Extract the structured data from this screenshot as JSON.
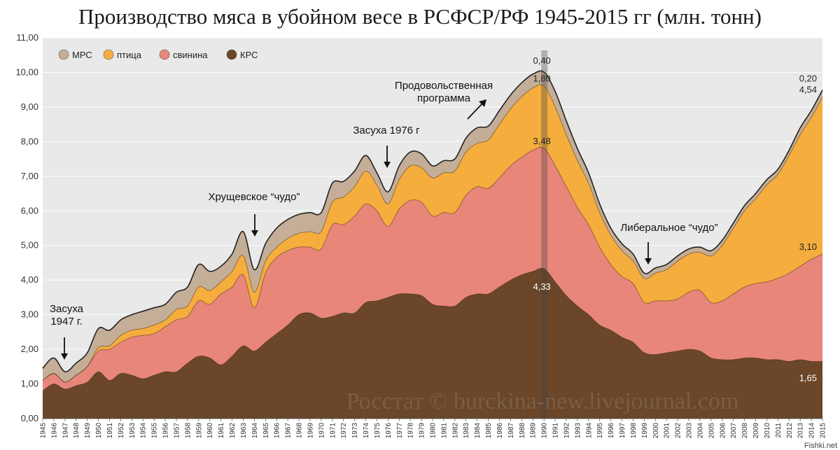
{
  "chart_data": {
    "type": "area",
    "title": "Производство мяса в убойном весе в РСФСР/РФ 1945-2015 гг (млн. тонн)",
    "ylim": [
      0,
      11
    ],
    "y_ticks": [
      "0,00",
      "1,00",
      "2,00",
      "3,00",
      "4,00",
      "5,00",
      "6,00",
      "7,00",
      "8,00",
      "9,00",
      "10,00",
      "11,00"
    ],
    "grid": true,
    "stacked": true,
    "legend_position": "top-left",
    "x": [
      "1945",
      "1946",
      "1947",
      "1948",
      "1949",
      "1950",
      "1951",
      "1952",
      "1953",
      "1954",
      "1955",
      "1956",
      "1957",
      "1958",
      "1959",
      "1960",
      "1961",
      "1962",
      "1963",
      "1964",
      "1965",
      "1966",
      "1967",
      "1968",
      "1969",
      "1970",
      "1971",
      "1972",
      "1973",
      "1974",
      "1975",
      "1976",
      "1977",
      "1978",
      "1979",
      "1980",
      "1981",
      "1982",
      "1983",
      "1984",
      "1985",
      "1986",
      "1987",
      "1988",
      "1989",
      "1990",
      "1991",
      "1992",
      "1993",
      "1994",
      "1995",
      "1996",
      "1997",
      "1998",
      "1999",
      "2000",
      "2001",
      "2002",
      "2003",
      "2004",
      "2005",
      "2006",
      "2007",
      "2008",
      "2009",
      "2010",
      "2011",
      "2012",
      "2013",
      "2014",
      "2015"
    ],
    "series": [
      {
        "name": "КРС",
        "color": "#6b4628",
        "values": [
          0.8,
          1.0,
          0.85,
          0.95,
          1.05,
          1.35,
          1.1,
          1.3,
          1.25,
          1.15,
          1.25,
          1.35,
          1.35,
          1.6,
          1.8,
          1.75,
          1.55,
          1.8,
          2.1,
          1.95,
          2.2,
          2.45,
          2.7,
          3.0,
          3.05,
          2.9,
          2.95,
          3.05,
          3.05,
          3.35,
          3.4,
          3.5,
          3.6,
          3.6,
          3.55,
          3.3,
          3.25,
          3.25,
          3.5,
          3.6,
          3.6,
          3.8,
          4.0,
          4.15,
          4.25,
          4.33,
          3.95,
          3.55,
          3.25,
          3.0,
          2.7,
          2.55,
          2.35,
          2.2,
          1.9,
          1.85,
          1.9,
          1.95,
          2.0,
          1.95,
          1.75,
          1.7,
          1.7,
          1.75,
          1.75,
          1.7,
          1.7,
          1.65,
          1.7,
          1.65,
          1.65
        ]
      },
      {
        "name": "свинина",
        "color": "#e8867a",
        "values": [
          0.3,
          0.3,
          0.2,
          0.3,
          0.45,
          0.6,
          0.9,
          0.9,
          1.1,
          1.25,
          1.2,
          1.3,
          1.5,
          1.35,
          1.6,
          1.55,
          2.05,
          2.0,
          2.05,
          1.25,
          2.0,
          2.2,
          2.15,
          1.95,
          1.9,
          2.0,
          2.65,
          2.55,
          2.8,
          2.85,
          2.6,
          2.05,
          2.45,
          2.7,
          2.7,
          2.55,
          2.7,
          2.7,
          2.95,
          3.1,
          3.05,
          3.15,
          3.3,
          3.4,
          3.5,
          3.48,
          3.35,
          3.15,
          2.85,
          2.6,
          2.25,
          1.9,
          1.75,
          1.7,
          1.45,
          1.55,
          1.5,
          1.5,
          1.65,
          1.75,
          1.6,
          1.7,
          1.9,
          2.05,
          2.15,
          2.25,
          2.35,
          2.55,
          2.7,
          2.95,
          3.1
        ]
      },
      {
        "name": "птица",
        "color": "#f5ad3d",
        "values": [
          0.0,
          0.0,
          0.0,
          0.0,
          0.0,
          0.1,
          0.1,
          0.2,
          0.2,
          0.2,
          0.25,
          0.2,
          0.3,
          0.3,
          0.4,
          0.4,
          0.35,
          0.45,
          0.55,
          0.45,
          0.35,
          0.3,
          0.35,
          0.4,
          0.45,
          0.5,
          0.65,
          0.8,
          0.85,
          0.95,
          0.75,
          0.65,
          0.85,
          1.0,
          1.0,
          1.1,
          1.15,
          1.2,
          1.25,
          1.25,
          1.4,
          1.55,
          1.65,
          1.75,
          1.8,
          1.8,
          1.7,
          1.5,
          1.35,
          1.2,
          1.0,
          0.85,
          0.75,
          0.65,
          0.7,
          0.8,
          0.9,
          1.1,
          1.1,
          1.1,
          1.35,
          1.6,
          1.9,
          2.2,
          2.45,
          2.8,
          3.0,
          3.4,
          3.8,
          4.1,
          4.54
        ]
      },
      {
        "name": "МРС",
        "color": "#c4ae98",
        "values": [
          0.35,
          0.45,
          0.3,
          0.35,
          0.4,
          0.55,
          0.45,
          0.45,
          0.45,
          0.5,
          0.5,
          0.45,
          0.5,
          0.55,
          0.65,
          0.55,
          0.45,
          0.5,
          0.7,
          0.65,
          0.5,
          0.55,
          0.55,
          0.55,
          0.55,
          0.55,
          0.55,
          0.45,
          0.45,
          0.45,
          0.35,
          0.35,
          0.4,
          0.4,
          0.4,
          0.35,
          0.35,
          0.35,
          0.4,
          0.45,
          0.4,
          0.4,
          0.4,
          0.4,
          0.4,
          0.4,
          0.45,
          0.4,
          0.35,
          0.3,
          0.25,
          0.2,
          0.2,
          0.2,
          0.15,
          0.15,
          0.15,
          0.15,
          0.15,
          0.15,
          0.15,
          0.15,
          0.15,
          0.15,
          0.15,
          0.15,
          0.15,
          0.15,
          0.2,
          0.2,
          0.2
        ]
      }
    ],
    "data_labels": [
      {
        "text": "0,40",
        "series": "МРС",
        "year": "1990",
        "color": "#222222"
      },
      {
        "text": "1,80",
        "series": "птица",
        "year": "1990",
        "color": "#222222"
      },
      {
        "text": "3,48",
        "series": "свинина",
        "year": "1990",
        "color": "#222222"
      },
      {
        "text": "4,33",
        "series": "КРС",
        "year": "1990",
        "color": "#ffffff"
      },
      {
        "text": "0,20",
        "series": "МРС",
        "year": "2015",
        "color": "#222222"
      },
      {
        "text": "4,54",
        "series": "птица",
        "year": "2015",
        "color": "#222222"
      },
      {
        "text": "3,10",
        "series": "свинина",
        "year": "2015",
        "color": "#222222"
      },
      {
        "text": "1,65",
        "series": "КРС",
        "year": "2015",
        "color": "#ffffff"
      }
    ],
    "annotations": [
      {
        "lines": [
          "Засуха",
          "1947 г."
        ],
        "year": "1947",
        "arrow": "down"
      },
      {
        "lines": [
          "Хрущевское “чудо”"
        ],
        "year": "1964",
        "arrow": "down"
      },
      {
        "lines": [
          "Засуха 1976 г"
        ],
        "year": "1976",
        "arrow": "down"
      },
      {
        "lines": [
          "Продовольственная",
          "программа"
        ],
        "year": "1983",
        "arrow": "up-right"
      },
      {
        "lines": [
          "Либеральное “чудо”"
        ],
        "year": "1999",
        "arrow": "down"
      }
    ],
    "watermark": "Росстат © burckina-new.livejournal.com"
  },
  "source_corner": "Fishki.net"
}
